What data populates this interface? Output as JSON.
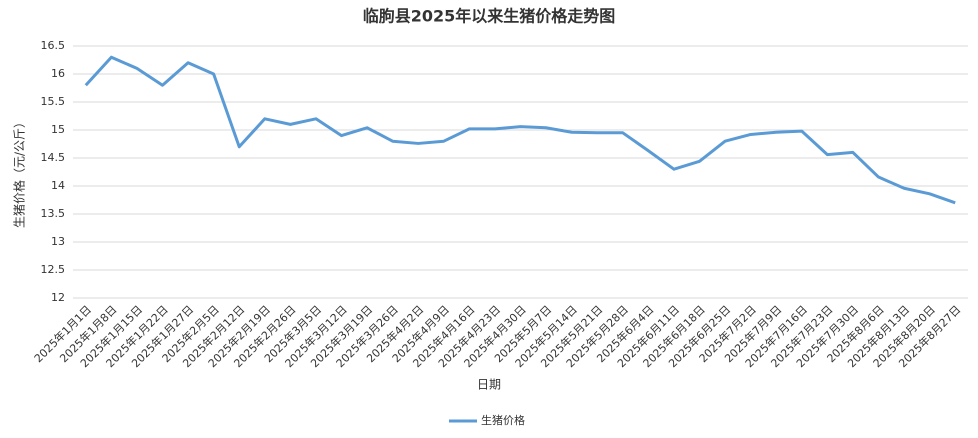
{
  "chart_data": {
    "type": "line",
    "title": "临朐县2025年以来生猪价格走势图",
    "x_label": "日期",
    "y_label": "生猪价格（元/公斤）",
    "categories": [
      "2025年1月1日",
      "2025年1月8日",
      "2025年1月15日",
      "2025年1月22日",
      "2025年1月27日",
      "2025年2月5日",
      "2025年2月12日",
      "2025年2月19日",
      "2025年2月26日",
      "2025年3月5日",
      "2025年3月12日",
      "2025年3月19日",
      "2025年3月26日",
      "2025年4月2日",
      "2025年4月9日",
      "2025年4月16日",
      "2025年4月23日",
      "2025年4月30日",
      "2025年5月7日",
      "2025年5月14日",
      "2025年5月21日",
      "2025年5月28日",
      "2025年6月4日",
      "2025年6月11日",
      "2025年6月18日",
      "2025年6月25日",
      "2025年7月2日",
      "2025年7月9日",
      "2025年7月16日",
      "2025年7月23日",
      "2025年7月30日",
      "2025年8月6日",
      "2025年8月13日",
      "2025年8月20日",
      "2025年8月27日"
    ],
    "series": [
      {
        "name": "生猪价格",
        "color": "#5b9bd5",
        "values": [
          15.8,
          16.3,
          16.1,
          15.8,
          16.2,
          16.0,
          14.7,
          15.2,
          15.1,
          15.2,
          14.9,
          15.04,
          14.8,
          14.76,
          14.8,
          15.02,
          15.02,
          15.06,
          15.04,
          14.96,
          14.95,
          14.95,
          14.63,
          14.3,
          14.44,
          14.8,
          14.92,
          14.96,
          14.98,
          14.56,
          14.6,
          14.16,
          13.96,
          13.86,
          13.7
        ]
      }
    ],
    "ylim": [
      12,
      16.5
    ],
    "yticks": [
      12,
      12.5,
      13,
      13.5,
      14,
      14.5,
      15,
      15.5,
      16,
      16.5
    ],
    "grid": true,
    "legend": "bottom"
  }
}
